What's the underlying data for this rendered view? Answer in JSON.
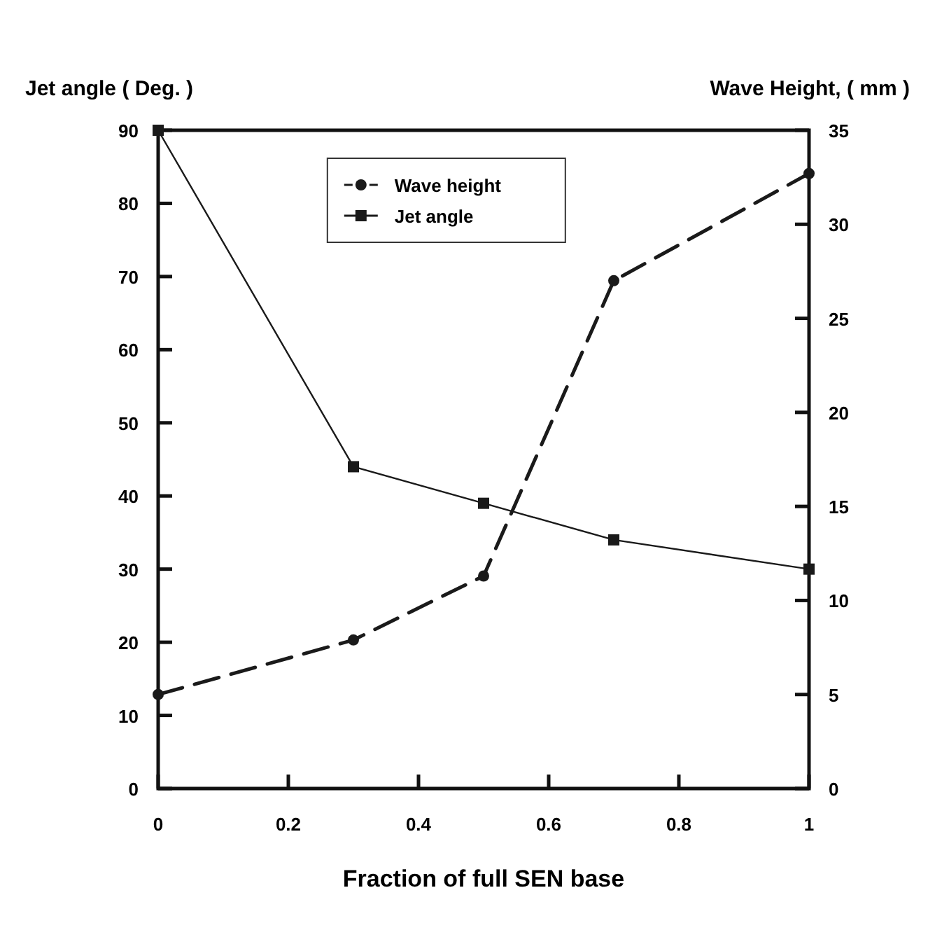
{
  "chart_data": {
    "type": "line",
    "xlabel": "Fraction of full SEN base",
    "ylabel": "Jet angle ( Deg. )",
    "y2label": "Wave Height, ( mm )",
    "x": [
      0,
      0.3,
      0.5,
      0.7,
      1
    ],
    "xlim": [
      0,
      1
    ],
    "xticks": [
      0,
      0.2,
      0.4,
      0.6,
      0.8,
      1
    ],
    "ylim": [
      0,
      90
    ],
    "yticks": [
      0,
      10,
      20,
      30,
      40,
      50,
      60,
      70,
      80,
      90
    ],
    "y2lim": [
      0,
      35
    ],
    "y2ticks": [
      0,
      5,
      10,
      15,
      20,
      25,
      30,
      35
    ],
    "legend": "top",
    "grid": false,
    "series": [
      {
        "name": "Wave height",
        "color": "#1a1a1a",
        "values": [
          5,
          7.9,
          11.3,
          27,
          32.7
        ],
        "axis": "y2",
        "marker": "circle",
        "line_style": "dashed"
      },
      {
        "name": "Jet angle",
        "color": "#1a1a1a",
        "values": [
          90,
          44,
          39,
          34,
          30
        ],
        "axis": "y",
        "marker": "square",
        "line_style": "solid"
      }
    ]
  }
}
